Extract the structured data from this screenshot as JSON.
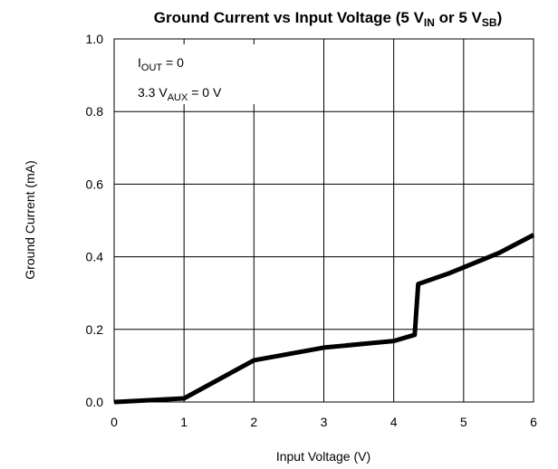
{
  "chart_data": {
    "type": "line",
    "title": {
      "main": "Ground Current vs Input Voltage (5 V",
      "sub1": "IN",
      "mid": " or 5 V",
      "sub2": "SB",
      "end": ")"
    },
    "xlabel": "Input Voltage (V)",
    "ylabel": "Ground Current (mA)",
    "xlim": [
      0,
      6
    ],
    "ylim": [
      0.0,
      1.0
    ],
    "x_ticks": [
      "0",
      "1",
      "2",
      "3",
      "4",
      "5",
      "6"
    ],
    "y_ticks": [
      "0.0",
      "0.2",
      "0.4",
      "0.6",
      "0.8",
      "1.0"
    ],
    "grid": true,
    "annotations": {
      "line1": {
        "pre": "I",
        "sub": "OUT",
        "post": " = 0"
      },
      "line2": {
        "pre": "3.3 V",
        "sub": "AUX",
        "post": " = 0 V"
      }
    },
    "series": [
      {
        "x": [
          0,
          1,
          2,
          3,
          4,
          4.3,
          4.35,
          4.8,
          5.5,
          6
        ],
        "y": [
          0.0,
          0.01,
          0.115,
          0.15,
          0.168,
          0.185,
          0.325,
          0.355,
          0.41,
          0.46
        ]
      }
    ]
  }
}
